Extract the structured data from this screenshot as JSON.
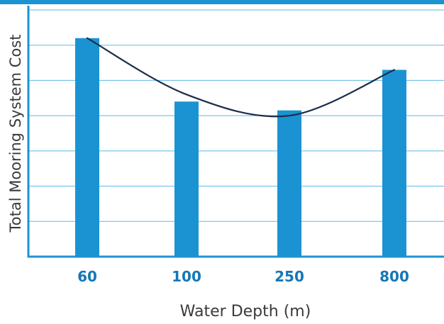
{
  "chart_data": {
    "type": "bar",
    "title": "",
    "xlabel": "Water Depth (m)",
    "ylabel": "Total Mooring System Cost",
    "categories": [
      "60",
      "100",
      "250",
      "800"
    ],
    "values": [
      6.2,
      4.4,
      4.15,
      5.3
    ],
    "ylim": [
      0,
      7
    ],
    "yticks": [
      1,
      2,
      3,
      4,
      5,
      6,
      7
    ],
    "grid": true,
    "y_tick_labels_shown": false,
    "trend_line": {
      "type": "curve",
      "values": [
        6.2,
        4.6,
        4.0,
        5.3
      ]
    },
    "colors": {
      "bar": "#1b93d2",
      "trend": "#1a2d4a",
      "grid": "#5eb9e6",
      "axis": "#1b93d2",
      "top_band": "#1b93d2",
      "tick_label": "#1577b6",
      "axis_title": "#3a3a3a"
    }
  }
}
